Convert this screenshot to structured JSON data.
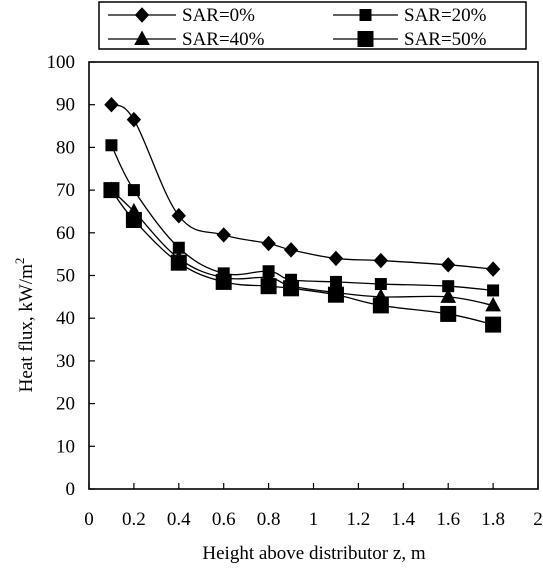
{
  "chart_data": {
    "type": "line",
    "xlabel": "Height above distributor z, m",
    "ylabel": "Heat flux, kW/m",
    "ylabel_superscript": "2",
    "xlim": [
      0,
      2
    ],
    "ylim": [
      0,
      100
    ],
    "x_ticks": [
      0,
      0.2,
      0.4,
      0.6,
      0.8,
      1,
      1.2,
      1.4,
      1.6,
      1.8,
      2
    ],
    "x_tick_labels": [
      "0",
      "0.2",
      "0.4",
      "0.6",
      "0.8",
      "1",
      "1.2",
      "1.4",
      "1.6",
      "1.8",
      "2"
    ],
    "y_ticks": [
      0,
      10,
      20,
      30,
      40,
      50,
      60,
      70,
      80,
      90,
      100
    ],
    "y_tick_labels": [
      "0",
      "10",
      "20",
      "30",
      "40",
      "50",
      "60",
      "70",
      "80",
      "90",
      "100"
    ],
    "grid": false,
    "legend_position": "top",
    "series": [
      {
        "name": "SAR=0%",
        "marker": "diamond",
        "x": [
          0.1,
          0.2,
          0.4,
          0.6,
          0.8,
          0.9,
          1.1,
          1.3,
          1.6,
          1.8
        ],
        "y": [
          90,
          86.5,
          64,
          59.5,
          57.5,
          56,
          54,
          53.5,
          52.5,
          51.5
        ]
      },
      {
        "name": "SAR=20%",
        "marker": "square",
        "x": [
          0.1,
          0.2,
          0.4,
          0.6,
          0.8,
          0.9,
          1.1,
          1.3,
          1.6,
          1.8
        ],
        "y": [
          80.5,
          70,
          56.5,
          50.5,
          51,
          49,
          48.5,
          48,
          47.5,
          46.5
        ]
      },
      {
        "name": "SAR=40%",
        "marker": "triangle",
        "x": [
          0.1,
          0.2,
          0.4,
          0.6,
          0.8,
          0.9,
          1.1,
          1.3,
          1.6,
          1.8
        ],
        "y": [
          70,
          65,
          54,
          49.5,
          49.5,
          47.5,
          46,
          45,
          45,
          43
        ]
      },
      {
        "name": "SAR=50%",
        "marker": "square-large",
        "x": [
          0.1,
          0.2,
          0.4,
          0.6,
          0.8,
          0.9,
          1.1,
          1.3,
          1.6,
          1.8
        ],
        "y": [
          70,
          63,
          53,
          48.5,
          47.5,
          47,
          45.5,
          43,
          41,
          38.5
        ]
      }
    ]
  }
}
